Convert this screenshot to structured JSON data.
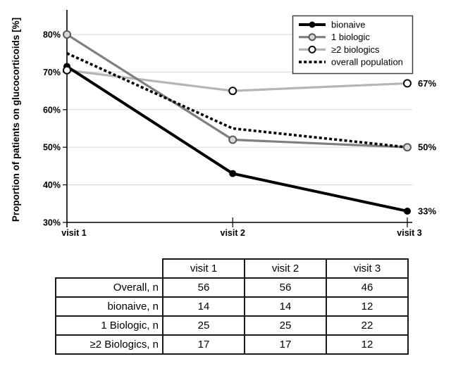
{
  "chart_data": {
    "type": "line",
    "title": "",
    "xlabel": "",
    "ylabel": "Proportion of patients on glucocorticoids [%]",
    "x_categories": [
      "visit 1",
      "visit 2",
      "visit 3"
    ],
    "y_ticks": [
      30,
      40,
      50,
      60,
      70,
      80
    ],
    "y_tick_labels": [
      "30%",
      "40%",
      "50%",
      "60%",
      "70%",
      "80%"
    ],
    "ylim": [
      30,
      85
    ],
    "grid": "horizontal",
    "legend_position": "top-right",
    "series": [
      {
        "name": "bionaive",
        "values": [
          71.5,
          43,
          33
        ],
        "color": "#000000",
        "style": "solid",
        "marker": "filled-circle",
        "marker_fill": "#000000",
        "marker_stroke": "#000000",
        "end_label": "33%"
      },
      {
        "name": "1 biologic",
        "values": [
          80,
          52,
          50
        ],
        "color": "#7f7f7f",
        "style": "solid",
        "marker": "open-circle",
        "marker_fill": "#d9d9d9",
        "marker_stroke": "#595959",
        "end_label": "50%"
      },
      {
        "name": "≥2 biologics",
        "values": [
          70.5,
          65,
          67
        ],
        "color": "#b5b5b5",
        "style": "solid",
        "marker": "open-circle",
        "marker_fill": "#ffffff",
        "marker_stroke": "#0d0d0d",
        "end_label": "67%"
      },
      {
        "name": "overall population",
        "values": [
          75,
          55,
          50
        ],
        "color": "#000000",
        "style": "dotted",
        "marker": "none",
        "marker_fill": "",
        "marker_stroke": "",
        "end_label": ""
      }
    ],
    "colors": {
      "gridline": "#dcdcdc",
      "axis": "#000000",
      "legend_border": "#404040",
      "background": "#ffffff"
    }
  },
  "table": {
    "column_headers": [
      "",
      "visit 1",
      "visit 2",
      "visit 3"
    ],
    "rows": [
      {
        "label": "Overall, n",
        "values": [
          "56",
          "56",
          "46"
        ]
      },
      {
        "label": "bionaive, n",
        "values": [
          "14",
          "14",
          "12"
        ]
      },
      {
        "label": "1 Biologic, n",
        "values": [
          "25",
          "25",
          "22"
        ]
      },
      {
        "label": "≥2 Biologics, n",
        "values": [
          "17",
          "17",
          "12"
        ]
      }
    ]
  }
}
